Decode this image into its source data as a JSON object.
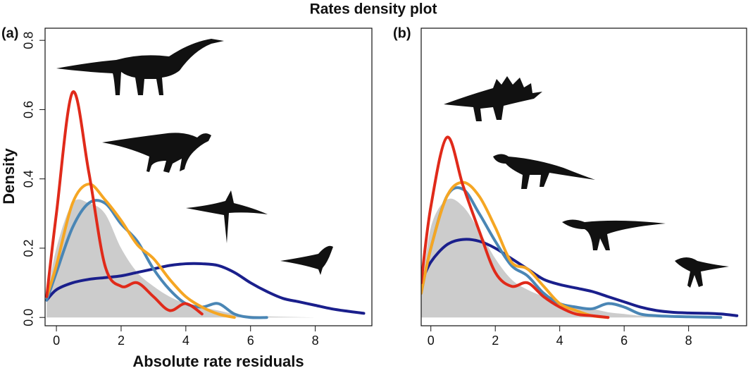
{
  "title": "Rates density plot",
  "x_label": "Absolute rate residuals",
  "y_label": "Density",
  "chart_data": [
    {
      "type": "line",
      "title": "(a)",
      "x": [
        -0.3,
        0,
        0.5,
        1,
        1.5,
        2,
        2.5,
        3,
        3.5,
        4,
        4.5,
        5,
        5.5,
        6,
        6.5,
        7,
        7.5,
        8,
        8.5,
        9,
        9.5
      ],
      "xlim": [
        -0.35,
        9.75
      ],
      "ylim": [
        -0.024,
        0.835
      ],
      "xticks": [
        0,
        2,
        4,
        6,
        8
      ],
      "yticks": [
        {
          "value": 0,
          "label": "0.0"
        },
        0.2,
        0.4,
        0.6,
        0.8
      ],
      "series": [
        {
          "color": "#cccccc",
          "area": true,
          "values": [
            0.05,
            0.2,
            0.33,
            0.33,
            0.3,
            0.2,
            0.13,
            0.09,
            0.06,
            0.04,
            0.03,
            0.02,
            0.01,
            0.005,
            0.003,
            0.002,
            0.001,
            0,
            null,
            null,
            null
          ]
        },
        {
          "color": "#1a1f8c",
          "values": [
            0.05,
            0.08,
            0.1,
            0.11,
            0.115,
            0.12,
            0.13,
            0.14,
            0.15,
            0.155,
            0.155,
            0.15,
            0.13,
            0.1,
            0.075,
            0.055,
            0.045,
            0.035,
            0.025,
            0.018,
            0.012
          ]
        },
        {
          "color": "#4a86b5",
          "values": [
            0.05,
            0.13,
            0.26,
            0.33,
            0.33,
            0.27,
            0.22,
            0.14,
            0.08,
            0.04,
            0.03,
            0.04,
            0.01,
            0.0,
            0.0,
            null,
            null,
            null,
            null,
            null,
            null
          ]
        },
        {
          "color": "#f5a623",
          "values": [
            0.06,
            0.15,
            0.33,
            0.385,
            0.34,
            0.28,
            0.21,
            0.17,
            0.11,
            0.06,
            0.03,
            0.01,
            0.0,
            null,
            null,
            null,
            null,
            null,
            null,
            null,
            null
          ]
        },
        {
          "color": "#e02a1a",
          "values": [
            0.06,
            0.3,
            0.65,
            0.42,
            0.15,
            0.09,
            0.1,
            0.06,
            0.02,
            0.04,
            0.01,
            null,
            null,
            null,
            null,
            null,
            null,
            null,
            null,
            null,
            null
          ]
        }
      ]
    },
    {
      "type": "line",
      "title": "(b)",
      "x": [
        -0.3,
        0,
        0.5,
        1,
        1.5,
        2,
        2.5,
        3,
        3.5,
        4,
        4.5,
        5,
        5.5,
        6,
        6.5,
        7,
        7.5,
        8,
        8.5,
        9,
        9.5
      ],
      "xlim": [
        -0.3,
        9.8
      ],
      "ylim": [
        -0.024,
        0.835
      ],
      "xticks": [
        0,
        2,
        4,
        6,
        8
      ],
      "series": [
        {
          "color": "#cccccc",
          "area": true,
          "values": [
            0.06,
            0.26,
            0.34,
            0.32,
            0.25,
            0.17,
            0.11,
            0.08,
            0.06,
            0.04,
            0.03,
            0.025,
            0.015,
            0.01,
            0.005,
            0.003,
            0.002,
            0.001,
            null,
            null,
            null
          ]
        },
        {
          "color": "#1a1f8c",
          "values": [
            0.1,
            0.16,
            0.21,
            0.225,
            0.22,
            0.2,
            0.17,
            0.14,
            0.11,
            0.095,
            0.085,
            0.075,
            0.06,
            0.045,
            0.03,
            0.02,
            0.015,
            0.013,
            0.012,
            0.01,
            0.005
          ]
        },
        {
          "color": "#4a86b5",
          "values": [
            0.07,
            0.2,
            0.35,
            0.37,
            0.3,
            0.22,
            0.15,
            0.12,
            0.07,
            0.04,
            0.03,
            0.025,
            0.04,
            0.03,
            0.01,
            0.005,
            0.003,
            0.002,
            0.001,
            0,
            null
          ]
        },
        {
          "color": "#f5a623",
          "values": [
            0.07,
            0.2,
            0.35,
            0.39,
            0.35,
            0.26,
            0.16,
            0.14,
            0.09,
            0.04,
            0.02,
            0.005,
            0.0,
            null,
            null,
            null,
            null,
            null,
            null,
            null,
            null
          ]
        },
        {
          "color": "#e02a1a",
          "values": [
            0.1,
            0.32,
            0.52,
            0.38,
            0.25,
            0.13,
            0.09,
            0.1,
            0.06,
            0.03,
            0.01,
            0.005,
            0.0,
            null,
            null,
            null,
            null,
            null,
            null,
            null,
            null
          ]
        }
      ]
    }
  ]
}
